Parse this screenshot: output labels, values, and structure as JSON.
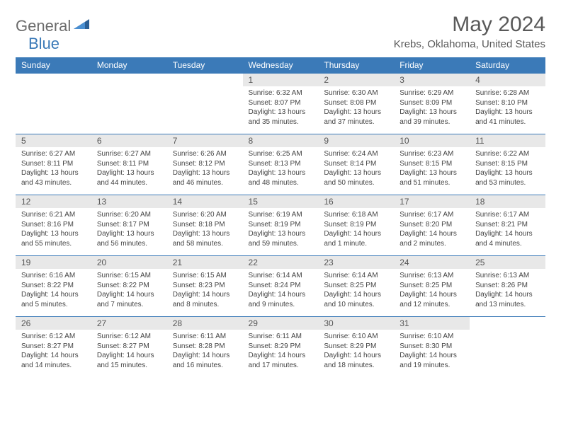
{
  "logo": {
    "part1": "General",
    "part2": "Blue"
  },
  "title": "May 2024",
  "location": "Krebs, Oklahoma, United States",
  "day_headers": [
    "Sunday",
    "Monday",
    "Tuesday",
    "Wednesday",
    "Thursday",
    "Friday",
    "Saturday"
  ],
  "colors": {
    "header_bg": "#3b7ab8",
    "header_text": "#ffffff",
    "daynum_bg": "#e8e8e8",
    "border": "#3b7ab8",
    "title_color": "#595959"
  },
  "weeks": [
    [
      {
        "n": "",
        "lines": []
      },
      {
        "n": "",
        "lines": []
      },
      {
        "n": "",
        "lines": []
      },
      {
        "n": "1",
        "lines": [
          "Sunrise: 6:32 AM",
          "Sunset: 8:07 PM",
          "Daylight: 13 hours",
          "and 35 minutes."
        ]
      },
      {
        "n": "2",
        "lines": [
          "Sunrise: 6:30 AM",
          "Sunset: 8:08 PM",
          "Daylight: 13 hours",
          "and 37 minutes."
        ]
      },
      {
        "n": "3",
        "lines": [
          "Sunrise: 6:29 AM",
          "Sunset: 8:09 PM",
          "Daylight: 13 hours",
          "and 39 minutes."
        ]
      },
      {
        "n": "4",
        "lines": [
          "Sunrise: 6:28 AM",
          "Sunset: 8:10 PM",
          "Daylight: 13 hours",
          "and 41 minutes."
        ]
      }
    ],
    [
      {
        "n": "5",
        "lines": [
          "Sunrise: 6:27 AM",
          "Sunset: 8:11 PM",
          "Daylight: 13 hours",
          "and 43 minutes."
        ]
      },
      {
        "n": "6",
        "lines": [
          "Sunrise: 6:27 AM",
          "Sunset: 8:11 PM",
          "Daylight: 13 hours",
          "and 44 minutes."
        ]
      },
      {
        "n": "7",
        "lines": [
          "Sunrise: 6:26 AM",
          "Sunset: 8:12 PM",
          "Daylight: 13 hours",
          "and 46 minutes."
        ]
      },
      {
        "n": "8",
        "lines": [
          "Sunrise: 6:25 AM",
          "Sunset: 8:13 PM",
          "Daylight: 13 hours",
          "and 48 minutes."
        ]
      },
      {
        "n": "9",
        "lines": [
          "Sunrise: 6:24 AM",
          "Sunset: 8:14 PM",
          "Daylight: 13 hours",
          "and 50 minutes."
        ]
      },
      {
        "n": "10",
        "lines": [
          "Sunrise: 6:23 AM",
          "Sunset: 8:15 PM",
          "Daylight: 13 hours",
          "and 51 minutes."
        ]
      },
      {
        "n": "11",
        "lines": [
          "Sunrise: 6:22 AM",
          "Sunset: 8:15 PM",
          "Daylight: 13 hours",
          "and 53 minutes."
        ]
      }
    ],
    [
      {
        "n": "12",
        "lines": [
          "Sunrise: 6:21 AM",
          "Sunset: 8:16 PM",
          "Daylight: 13 hours",
          "and 55 minutes."
        ]
      },
      {
        "n": "13",
        "lines": [
          "Sunrise: 6:20 AM",
          "Sunset: 8:17 PM",
          "Daylight: 13 hours",
          "and 56 minutes."
        ]
      },
      {
        "n": "14",
        "lines": [
          "Sunrise: 6:20 AM",
          "Sunset: 8:18 PM",
          "Daylight: 13 hours",
          "and 58 minutes."
        ]
      },
      {
        "n": "15",
        "lines": [
          "Sunrise: 6:19 AM",
          "Sunset: 8:19 PM",
          "Daylight: 13 hours",
          "and 59 minutes."
        ]
      },
      {
        "n": "16",
        "lines": [
          "Sunrise: 6:18 AM",
          "Sunset: 8:19 PM",
          "Daylight: 14 hours",
          "and 1 minute."
        ]
      },
      {
        "n": "17",
        "lines": [
          "Sunrise: 6:17 AM",
          "Sunset: 8:20 PM",
          "Daylight: 14 hours",
          "and 2 minutes."
        ]
      },
      {
        "n": "18",
        "lines": [
          "Sunrise: 6:17 AM",
          "Sunset: 8:21 PM",
          "Daylight: 14 hours",
          "and 4 minutes."
        ]
      }
    ],
    [
      {
        "n": "19",
        "lines": [
          "Sunrise: 6:16 AM",
          "Sunset: 8:22 PM",
          "Daylight: 14 hours",
          "and 5 minutes."
        ]
      },
      {
        "n": "20",
        "lines": [
          "Sunrise: 6:15 AM",
          "Sunset: 8:22 PM",
          "Daylight: 14 hours",
          "and 7 minutes."
        ]
      },
      {
        "n": "21",
        "lines": [
          "Sunrise: 6:15 AM",
          "Sunset: 8:23 PM",
          "Daylight: 14 hours",
          "and 8 minutes."
        ]
      },
      {
        "n": "22",
        "lines": [
          "Sunrise: 6:14 AM",
          "Sunset: 8:24 PM",
          "Daylight: 14 hours",
          "and 9 minutes."
        ]
      },
      {
        "n": "23",
        "lines": [
          "Sunrise: 6:14 AM",
          "Sunset: 8:25 PM",
          "Daylight: 14 hours",
          "and 10 minutes."
        ]
      },
      {
        "n": "24",
        "lines": [
          "Sunrise: 6:13 AM",
          "Sunset: 8:25 PM",
          "Daylight: 14 hours",
          "and 12 minutes."
        ]
      },
      {
        "n": "25",
        "lines": [
          "Sunrise: 6:13 AM",
          "Sunset: 8:26 PM",
          "Daylight: 14 hours",
          "and 13 minutes."
        ]
      }
    ],
    [
      {
        "n": "26",
        "lines": [
          "Sunrise: 6:12 AM",
          "Sunset: 8:27 PM",
          "Daylight: 14 hours",
          "and 14 minutes."
        ]
      },
      {
        "n": "27",
        "lines": [
          "Sunrise: 6:12 AM",
          "Sunset: 8:27 PM",
          "Daylight: 14 hours",
          "and 15 minutes."
        ]
      },
      {
        "n": "28",
        "lines": [
          "Sunrise: 6:11 AM",
          "Sunset: 8:28 PM",
          "Daylight: 14 hours",
          "and 16 minutes."
        ]
      },
      {
        "n": "29",
        "lines": [
          "Sunrise: 6:11 AM",
          "Sunset: 8:29 PM",
          "Daylight: 14 hours",
          "and 17 minutes."
        ]
      },
      {
        "n": "30",
        "lines": [
          "Sunrise: 6:10 AM",
          "Sunset: 8:29 PM",
          "Daylight: 14 hours",
          "and 18 minutes."
        ]
      },
      {
        "n": "31",
        "lines": [
          "Sunrise: 6:10 AM",
          "Sunset: 8:30 PM",
          "Daylight: 14 hours",
          "and 19 minutes."
        ]
      },
      {
        "n": "",
        "lines": []
      }
    ]
  ]
}
